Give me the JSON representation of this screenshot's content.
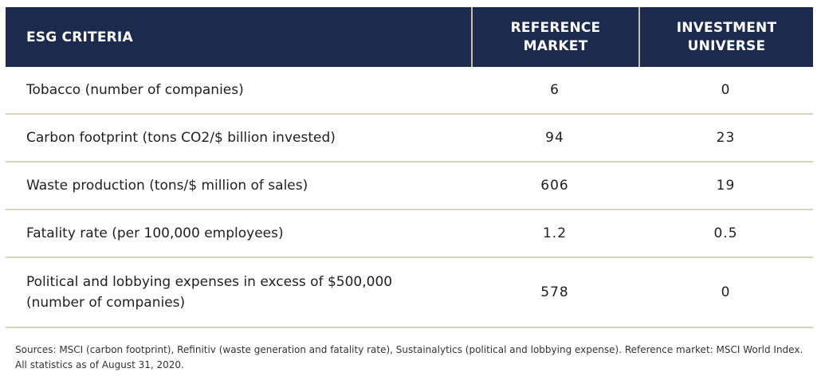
{
  "table": {
    "headers": {
      "criteria": "ESG CRITERIA",
      "reference_market": "REFERENCE\nMARKET",
      "investment_universe": "INVESTMENT\nUNIVERSE"
    },
    "rows": [
      {
        "criteria": "Tobacco (number of companies)",
        "reference_market": "6",
        "investment_universe": "0"
      },
      {
        "criteria": "Carbon footprint (tons CO2/$ billion invested)",
        "reference_market": "94",
        "investment_universe": "23"
      },
      {
        "criteria": "Waste production (tons/$ million of sales)",
        "reference_market": "606",
        "investment_universe": "19"
      },
      {
        "criteria": "Fatality rate (per 100,000 employees)",
        "reference_market": "1.2",
        "investment_universe": "0.5"
      },
      {
        "criteria": "Political and lobbying expenses in excess of $500,000\n(number of companies)",
        "reference_market": "578",
        "investment_universe": "0"
      }
    ]
  },
  "footnote": "Sources: MSCI (carbon footprint), Refinitiv (waste generation and fatality rate), Sustainalytics (political and lobbying expense). Reference market: MSCI World Index. All statistics as of August 31, 2020.",
  "colors": {
    "header_bg": "#1c2a4e",
    "divider": "#d9d2bd"
  }
}
